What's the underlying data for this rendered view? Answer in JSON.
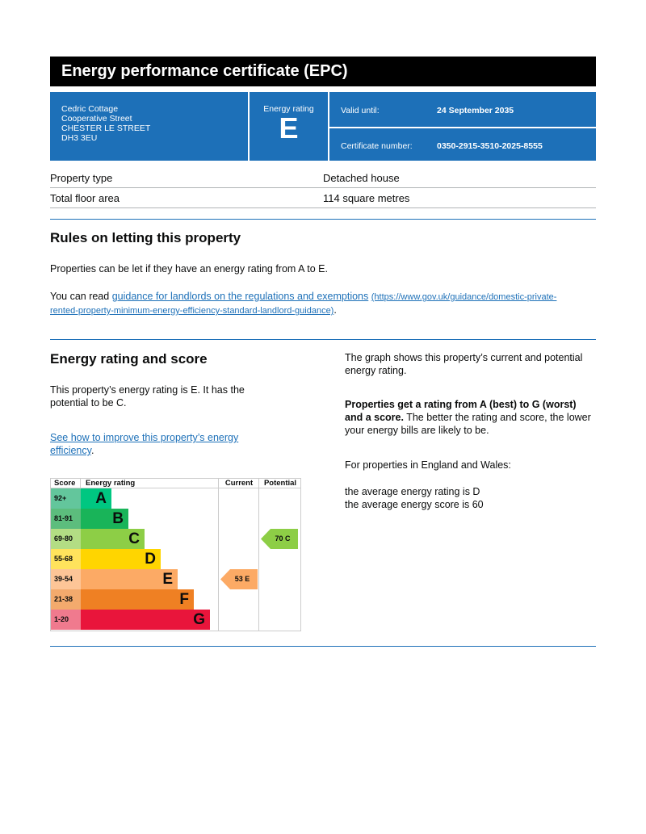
{
  "title": "Energy performance certificate (EPC)",
  "address": [
    "Cedric Cottage",
    "Cooperative Street",
    "CHESTER LE STREET",
    "DH3 3EU"
  ],
  "rating": {
    "label": "Energy rating",
    "value": "E"
  },
  "valid": {
    "label": "Valid until:",
    "value": "24 September 2035"
  },
  "certificate": {
    "label": "Certificate number:",
    "value": "0350-2915-3510-2025-8555"
  },
  "details": [
    {
      "k": "Property type",
      "v": "Detached house"
    },
    {
      "k": "Total floor area",
      "v": "114 square metres"
    }
  ],
  "rules": {
    "heading": "Rules on letting this property",
    "p1": "Properties can be let if they have an energy rating from A to E.",
    "p2_prefix": "You can read ",
    "p2_link": "guidance for landlords on the regulations and exemptions",
    "p2_url": "(https://www.gov.uk/guidance/domestic-private-rented-property-minimum-energy-efficiency-standard-landlord-guidance)",
    "p2_suffix": "."
  },
  "score": {
    "heading": "Energy rating and score",
    "p1": "This property’s energy rating is E. It has the potential to be C.",
    "link": "See how to improve this property’s energy efficiency",
    "link_suffix": ".",
    "r1": "The graph shows this property’s current and potential energy rating.",
    "r2_bold": "Properties get a rating from A (best) to G (worst) and a score.",
    "r2_rest": " The better the rating and score, the lower your energy bills are likely to be.",
    "r3": "For properties in England and Wales:",
    "r4": "the average energy rating is D",
    "r5": "the average energy score is 60"
  },
  "chart_data": {
    "type": "table",
    "headers": [
      "Score",
      "Energy rating",
      "Current",
      "Potential"
    ],
    "bands": [
      {
        "score": "92+",
        "letter": "A",
        "color": "#00c781",
        "scolor": "#63c69c"
      },
      {
        "score": "81-91",
        "letter": "B",
        "color": "#19b459",
        "scolor": "#5cbd7d"
      },
      {
        "score": "69-80",
        "letter": "C",
        "color": "#8dce46",
        "scolor": "#b3dd84"
      },
      {
        "score": "55-68",
        "letter": "D",
        "color": "#ffd500",
        "scolor": "#ffe35c"
      },
      {
        "score": "39-54",
        "letter": "E",
        "color": "#fcaa65",
        "scolor": "#fdc597"
      },
      {
        "score": "21-38",
        "letter": "F",
        "color": "#ef8023",
        "scolor": "#f3aa6d"
      },
      {
        "score": "1-20",
        "letter": "G",
        "color": "#e9153b",
        "scolor": "#f07a8e"
      }
    ],
    "current": {
      "score": 53,
      "letter": "E",
      "label": "53  E"
    },
    "potential": {
      "score": 70,
      "letter": "C",
      "label": "70  C"
    }
  }
}
